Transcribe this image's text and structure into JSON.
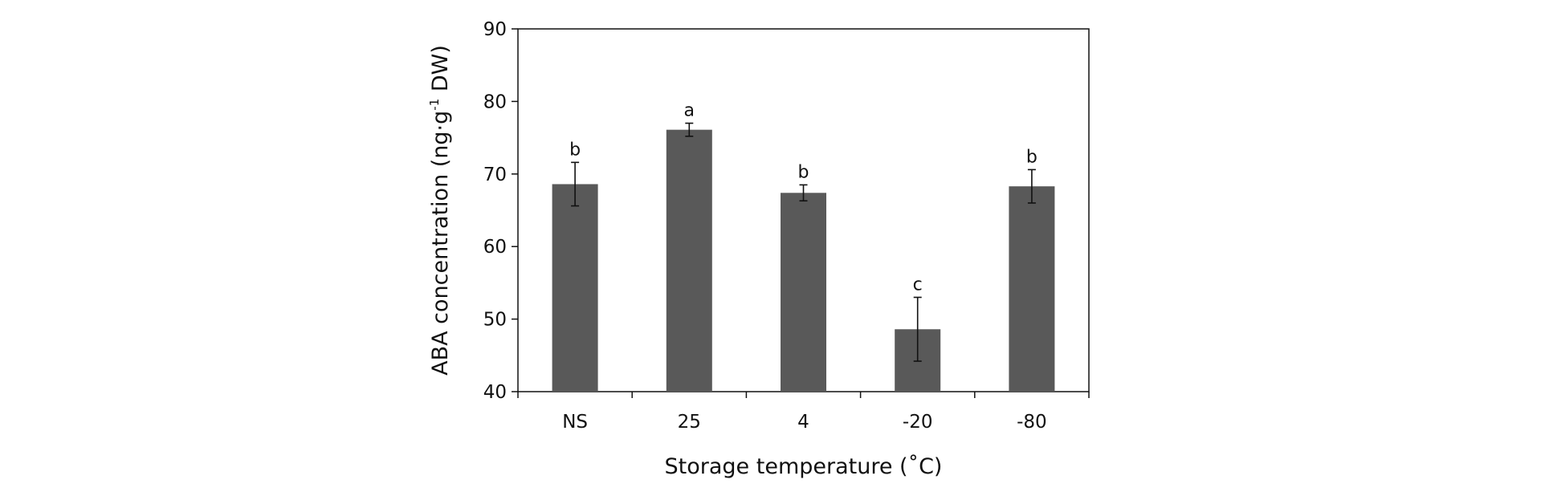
{
  "chart_data": {
    "type": "bar",
    "title": "",
    "xlabel": "Storage temperature (˚C)",
    "ylabel_main": "ABA concentration (ng·g",
    "ylabel_sup": "-1",
    "ylabel_tail": " DW)",
    "categories": [
      "NS",
      "25",
      "4",
      "-20",
      "-80"
    ],
    "values": [
      68.6,
      76.1,
      67.4,
      48.6,
      68.3
    ],
    "errors": [
      3.0,
      0.9,
      1.1,
      4.4,
      2.3
    ],
    "significance": [
      "b",
      "a",
      "b",
      "c",
      "b"
    ],
    "ylim": [
      40,
      90
    ],
    "yticks": [
      40,
      50,
      60,
      70,
      80,
      90
    ],
    "ytick_labels": [
      "40",
      "50",
      "60",
      "70",
      "80",
      "90"
    ],
    "grid": false,
    "legend": "none",
    "bar_color": "#595959"
  }
}
